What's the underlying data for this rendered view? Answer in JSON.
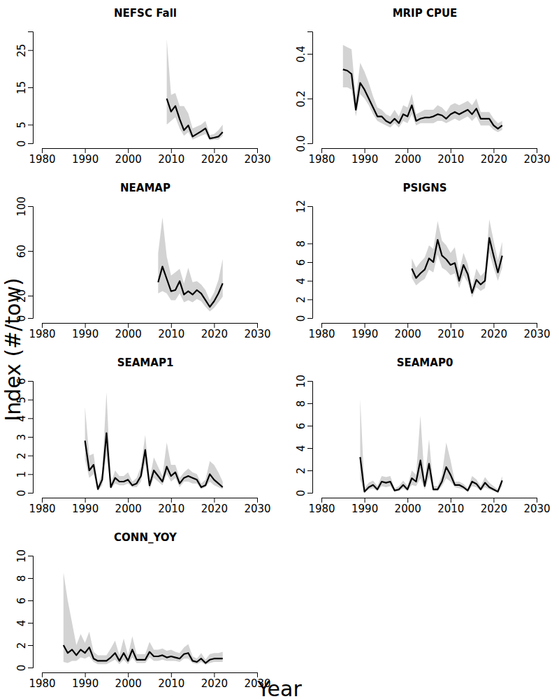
{
  "ylabel": "Index (#/tow)",
  "xlabel": "Year",
  "chart_data": [
    {
      "type": "line",
      "title": "NEFSC Fall",
      "x": [
        2009,
        2010,
        2011,
        2012,
        2013,
        2014,
        2015,
        2016,
        2017,
        2018,
        2019,
        2020,
        2021,
        2022
      ],
      "series": [
        {
          "color": "#000000",
          "values": [
            12,
            8.5,
            10,
            6.5,
            3.5,
            4.8,
            1.8,
            2.5,
            3.2,
            4,
            1.3,
            1.5,
            1.8,
            3
          ],
          "lower": [
            5,
            6,
            7,
            4,
            2,
            3,
            1,
            1.5,
            2,
            2.5,
            0.8,
            1,
            1,
            2
          ],
          "upper": [
            28,
            13,
            13.5,
            10,
            10,
            8,
            4,
            4.5,
            5,
            6,
            2.2,
            2.5,
            3.5,
            5
          ]
        }
      ],
      "xlim": [
        1980,
        2030
      ],
      "xticks": [
        1980,
        1990,
        2000,
        2010,
        2020,
        2030
      ],
      "ylim": [
        0,
        30
      ],
      "yticks": [
        0,
        5,
        15,
        25
      ]
    },
    {
      "type": "line",
      "title": "MRIP CPUE",
      "x": [
        1985,
        1986,
        1987,
        1988,
        1989,
        1990,
        1991,
        1992,
        1993,
        1994,
        1995,
        1996,
        1997,
        1998,
        1999,
        2000,
        2001,
        2002,
        2003,
        2004,
        2005,
        2006,
        2007,
        2008,
        2009,
        2010,
        2011,
        2012,
        2013,
        2014,
        2015,
        2016,
        2017,
        2018,
        2019,
        2020,
        2021,
        2022
      ],
      "series": [
        {
          "color": "#000000",
          "values": [
            0.33,
            0.325,
            0.31,
            0.15,
            0.27,
            0.24,
            0.2,
            0.16,
            0.12,
            0.12,
            0.1,
            0.09,
            0.11,
            0.09,
            0.13,
            0.12,
            0.17,
            0.1,
            0.11,
            0.115,
            0.115,
            0.12,
            0.13,
            0.125,
            0.11,
            0.13,
            0.14,
            0.13,
            0.14,
            0.15,
            0.13,
            0.155,
            0.11,
            0.11,
            0.11,
            0.08,
            0.065,
            0.08
          ],
          "lower": [
            0.25,
            0.25,
            0.24,
            0.12,
            0.22,
            0.2,
            0.17,
            0.13,
            0.1,
            0.09,
            0.08,
            0.07,
            0.09,
            0.07,
            0.1,
            0.09,
            0.13,
            0.08,
            0.09,
            0.09,
            0.09,
            0.09,
            0.1,
            0.1,
            0.09,
            0.1,
            0.11,
            0.1,
            0.11,
            0.12,
            0.1,
            0.12,
            0.08,
            0.08,
            0.08,
            0.06,
            0.05,
            0.06
          ],
          "upper": [
            0.44,
            0.43,
            0.42,
            0.2,
            0.36,
            0.32,
            0.27,
            0.21,
            0.16,
            0.15,
            0.13,
            0.12,
            0.15,
            0.12,
            0.17,
            0.16,
            0.22,
            0.13,
            0.14,
            0.15,
            0.15,
            0.15,
            0.17,
            0.16,
            0.14,
            0.17,
            0.18,
            0.17,
            0.18,
            0.19,
            0.17,
            0.2,
            0.14,
            0.14,
            0.14,
            0.11,
            0.09,
            0.1
          ]
        }
      ],
      "xlim": [
        1980,
        2030
      ],
      "xticks": [
        1980,
        1990,
        2000,
        2010,
        2020,
        2030
      ],
      "ylim": [
        0,
        0.5
      ],
      "yticks": [
        {
          "value": 0,
          "label": "0.0"
        },
        0.2,
        0.4
      ]
    },
    {
      "type": "line",
      "title": "NEAMAP",
      "x": [
        2007,
        2008,
        2009,
        2010,
        2011,
        2012,
        2013,
        2014,
        2015,
        2016,
        2017,
        2018,
        2019,
        2020,
        2021,
        2022
      ],
      "series": [
        {
          "color": "#000000",
          "values": [
            32,
            46,
            35,
            24,
            25,
            33,
            21,
            24,
            21,
            25,
            22,
            16,
            10,
            15,
            22,
            31
          ],
          "lower": [
            22,
            24,
            22,
            16,
            16,
            22,
            14,
            16,
            14,
            17,
            15,
            10,
            6,
            9,
            14,
            19
          ],
          "upper": [
            58,
            90,
            55,
            38,
            41,
            44,
            31,
            45,
            32,
            33,
            30,
            25,
            16,
            23,
            34,
            53
          ]
        }
      ],
      "xlim": [
        1980,
        2030
      ],
      "xticks": [
        1980,
        1990,
        2000,
        2010,
        2020,
        2030
      ],
      "ylim": [
        0,
        100
      ],
      "yticks": [
        0,
        20,
        60,
        100
      ]
    },
    {
      "type": "line",
      "title": "PSIGNS",
      "x": [
        2001,
        2002,
        2003,
        2004,
        2005,
        2006,
        2007,
        2008,
        2009,
        2010,
        2011,
        2012,
        2013,
        2014,
        2015,
        2016,
        2017,
        2018,
        2019,
        2020,
        2021,
        2022
      ],
      "series": [
        {
          "color": "#000000",
          "values": [
            5.3,
            4.3,
            4.8,
            5.2,
            6.4,
            6.0,
            8.4,
            6.7,
            6.3,
            5.7,
            5.9,
            4.0,
            5.7,
            4.7,
            2.7,
            4.1,
            3.6,
            4.0,
            8.6,
            6.7,
            4.9,
            6.7
          ],
          "lower": [
            4.3,
            3.5,
            3.9,
            4.2,
            5.2,
            4.9,
            6.8,
            5.4,
            5.1,
            4.6,
            4.8,
            3.2,
            4.6,
            3.8,
            2.2,
            3.3,
            2.9,
            3.2,
            7,
            5.4,
            4,
            5.4
          ],
          "upper": [
            6.4,
            5.4,
            6,
            6.5,
            7.8,
            7.4,
            10.4,
            8.3,
            7.8,
            7,
            7.6,
            5,
            7,
            5.8,
            3.4,
            5.3,
            4.5,
            5,
            10.6,
            8.3,
            6.2,
            8.2
          ]
        }
      ],
      "xlim": [
        1980,
        2030
      ],
      "xticks": [
        1980,
        1990,
        2000,
        2010,
        2020,
        2030
      ],
      "ylim": [
        0,
        12
      ],
      "yticks": [
        0,
        2,
        4,
        6,
        8,
        12
      ]
    },
    {
      "type": "line",
      "title": "SEAMAP1",
      "x": [
        1990,
        1991,
        1992,
        1993,
        1994,
        1995,
        1996,
        1997,
        1998,
        1999,
        2000,
        2001,
        2002,
        2003,
        2004,
        2005,
        2006,
        2007,
        2008,
        2009,
        2010,
        2011,
        2012,
        2013,
        2014,
        2015,
        2016,
        2017,
        2018,
        2019,
        2020,
        2021,
        2022
      ],
      "series": [
        {
          "color": "#000000",
          "values": [
            2.8,
            1.2,
            1.5,
            0.2,
            0.7,
            3.2,
            0.3,
            0.8,
            0.6,
            0.6,
            0.7,
            0.4,
            0.5,
            0.9,
            2.3,
            0.4,
            1.2,
            0.9,
            0.6,
            1.4,
            0.9,
            1.1,
            0.5,
            0.8,
            0.9,
            0.8,
            0.7,
            0.3,
            0.4,
            1.0,
            0.7,
            0.5,
            0.3
          ],
          "lower": [
            1.8,
            0.8,
            1,
            0.1,
            0.4,
            2,
            0.2,
            0.5,
            0.4,
            0.4,
            0.5,
            0.3,
            0.3,
            0.6,
            1.6,
            0.2,
            0.8,
            0.6,
            0.4,
            1,
            0.6,
            0.8,
            0.3,
            0.6,
            0.6,
            0.5,
            0.5,
            0.2,
            0.3,
            0.6,
            0.4,
            0.3,
            0.2
          ],
          "upper": [
            4.6,
            2,
            2.1,
            0.4,
            1.1,
            5.4,
            0.5,
            1.2,
            0.9,
            0.9,
            1.1,
            0.6,
            0.8,
            1.4,
            3.1,
            0.7,
            1.9,
            1.4,
            0.9,
            2.7,
            1.5,
            1.5,
            0.8,
            1.1,
            1.3,
            1.1,
            1,
            0.5,
            0.7,
            1.7,
            1.5,
            1.1,
            0.6
          ]
        }
      ],
      "xlim": [
        1980,
        2030
      ],
      "xticks": [
        1980,
        1990,
        2000,
        2010,
        2020,
        2030
      ],
      "ylim": [
        0,
        6
      ],
      "yticks": [
        0,
        1,
        2,
        3,
        4,
        5,
        6
      ]
    },
    {
      "type": "line",
      "title": "SEAMAP0",
      "x": [
        1989,
        1990,
        1991,
        1992,
        1993,
        1994,
        1995,
        1996,
        1997,
        1998,
        1999,
        2000,
        2001,
        2002,
        2003,
        2004,
        2005,
        2006,
        2007,
        2008,
        2009,
        2010,
        2011,
        2012,
        2013,
        2014,
        2015,
        2016,
        2017,
        2018,
        2019,
        2020,
        2021,
        2022
      ],
      "series": [
        {
          "color": "#000000",
          "values": [
            3.2,
            0.1,
            0.5,
            0.7,
            0.3,
            1.0,
            0.9,
            1.0,
            0.2,
            0.3,
            0.7,
            0.3,
            1.3,
            1.0,
            2.9,
            0.6,
            2.6,
            0.3,
            0.3,
            1.0,
            2.3,
            1.6,
            0.7,
            0.7,
            0.5,
            0.2,
            1.0,
            0.8,
            0.3,
            0.9,
            0.5,
            0.3,
            0.1,
            1.1
          ],
          "lower": [
            1.2,
            0.05,
            0.3,
            0.4,
            0.15,
            0.6,
            0.5,
            0.6,
            0.1,
            0.15,
            0.4,
            0.15,
            0.7,
            0.6,
            1.3,
            0.3,
            1.4,
            0.15,
            0.15,
            0.6,
            1.3,
            1,
            0.5,
            0.4,
            0.3,
            0.1,
            0.6,
            0.5,
            0.15,
            0.5,
            0.3,
            0.15,
            0.05,
            0.6
          ],
          "upper": [
            8.4,
            0.4,
            0.9,
            1.1,
            0.6,
            1.5,
            1.4,
            1.5,
            0.4,
            0.6,
            1.1,
            0.6,
            2,
            1.6,
            6.9,
            1,
            4.8,
            0.6,
            0.6,
            1.6,
            4.5,
            2.9,
            1,
            1,
            0.8,
            0.4,
            1.5,
            1.2,
            0.6,
            1.4,
            0.9,
            0.6,
            0.3,
            1.5
          ]
        }
      ],
      "xlim": [
        1980,
        2030
      ],
      "xticks": [
        1980,
        1990,
        2000,
        2010,
        2020,
        2030
      ],
      "ylim": [
        0,
        10
      ],
      "yticks": [
        0,
        2,
        4,
        6,
        8,
        10
      ]
    },
    {
      "type": "line",
      "title": "CONN_YOY",
      "x": [
        1985,
        1986,
        1987,
        1988,
        1989,
        1990,
        1991,
        1992,
        1993,
        1994,
        1995,
        1996,
        1997,
        1998,
        1999,
        2000,
        2001,
        2002,
        2003,
        2004,
        2005,
        2006,
        2007,
        2008,
        2009,
        2010,
        2011,
        2012,
        2013,
        2014,
        2015,
        2016,
        2017,
        2018,
        2019,
        2020,
        2021,
        2022
      ],
      "series": [
        {
          "color": "#000000",
          "values": [
            2.0,
            1.3,
            1.6,
            1.1,
            1.6,
            1.3,
            1.8,
            0.8,
            0.6,
            0.6,
            0.6,
            0.9,
            1.3,
            0.6,
            1.3,
            0.6,
            1.6,
            0.7,
            0.7,
            0.7,
            1.4,
            1.0,
            1.0,
            1.1,
            0.9,
            1.0,
            0.9,
            0.8,
            1.2,
            1.3,
            0.6,
            0.5,
            0.8,
            0.4,
            0.7,
            0.8,
            0.8,
            0.8
          ],
          "lower": [
            0.5,
            0.4,
            0.6,
            0.6,
            0.9,
            0.8,
            1,
            0.5,
            0.3,
            0.3,
            0.3,
            0.5,
            0.7,
            0.3,
            0.7,
            0.3,
            0.9,
            0.4,
            0.4,
            0.4,
            0.9,
            0.6,
            0.6,
            0.7,
            0.6,
            0.6,
            0.6,
            0.5,
            0.8,
            0.8,
            0.4,
            0.3,
            0.5,
            0.25,
            0.4,
            0.5,
            0.5,
            0.5
          ],
          "upper": [
            8.5,
            6,
            4,
            2,
            3,
            2.2,
            3.2,
            1.4,
            1.1,
            1.1,
            1.1,
            1.7,
            2.4,
            1.1,
            2.6,
            1.1,
            2.8,
            1.2,
            1.2,
            1.2,
            2.3,
            1.6,
            1.6,
            1.7,
            1.5,
            1.6,
            1.4,
            1.3,
            1.8,
            2.1,
            1,
            0.8,
            1.3,
            0.7,
            1.2,
            1.3,
            1.3,
            1.4
          ]
        }
      ],
      "xlim": [
        1980,
        2030
      ],
      "xticks": [
        1980,
        1990,
        2000,
        2010,
        2020,
        2030
      ],
      "ylim": [
        0,
        10
      ],
      "yticks": [
        0,
        2,
        4,
        6,
        8,
        10
      ]
    }
  ]
}
